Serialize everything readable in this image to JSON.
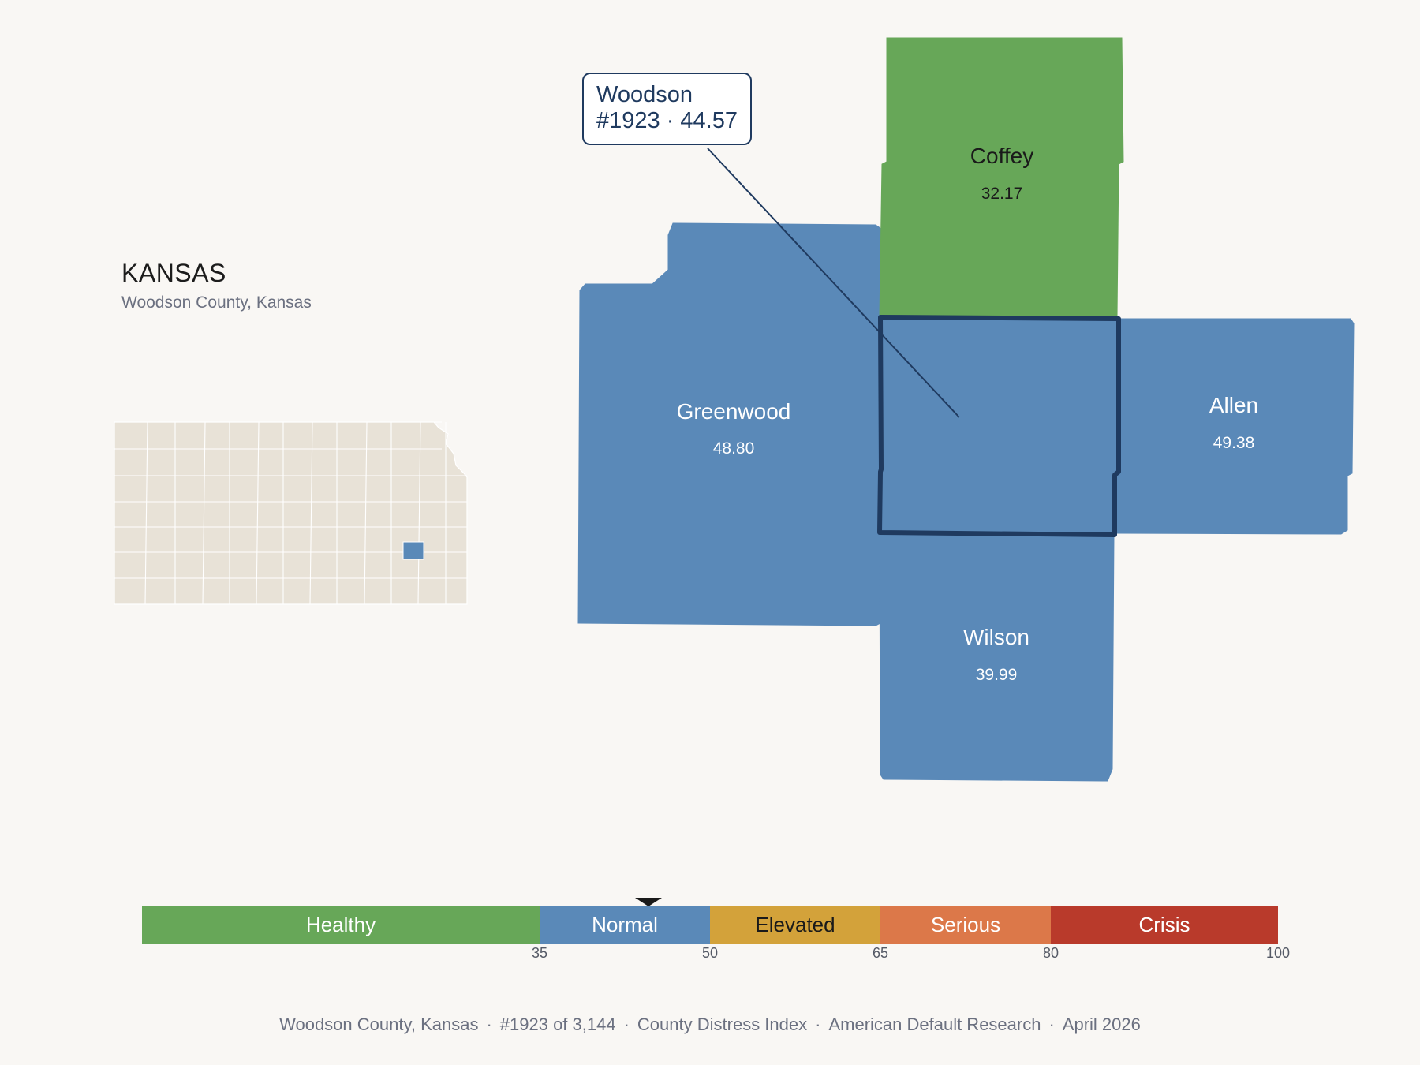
{
  "state": {
    "title": "KANSAS",
    "subtitle": "Woodson County, Kansas"
  },
  "colors": {
    "healthy": "#67a758",
    "normal": "#5a89b8",
    "elevated": "#d3a23a",
    "serious": "#dc7849",
    "crisis": "#b93a2b",
    "outline": "#1f3a5f",
    "inset_fill": "#e8e2d7"
  },
  "focus": {
    "name": "Woodson",
    "rank_value": "#1923 · 44.57",
    "category": "normal"
  },
  "counties": [
    {
      "id": "coffey",
      "name": "Coffey",
      "value": "32.17",
      "category": "healthy"
    },
    {
      "id": "greenwood",
      "name": "Greenwood",
      "value": "48.80",
      "category": "normal"
    },
    {
      "id": "allen",
      "name": "Allen",
      "value": "49.38",
      "category": "normal"
    },
    {
      "id": "wilson",
      "name": "Wilson",
      "value": "39.99",
      "category": "normal"
    }
  ],
  "scale": {
    "segments": [
      {
        "label": "Healthy",
        "from": 0,
        "to": 35,
        "color": "#67a758"
      },
      {
        "label": "Normal",
        "from": 35,
        "to": 50,
        "color": "#5a89b8"
      },
      {
        "label": "Elevated",
        "from": 50,
        "to": 65,
        "color": "#d3a23a"
      },
      {
        "label": "Serious",
        "from": 65,
        "to": 80,
        "color": "#dc7849"
      },
      {
        "label": "Crisis",
        "from": 80,
        "to": 100,
        "color": "#b93a2b"
      }
    ],
    "ticks": [
      "35",
      "50",
      "65",
      "80",
      "100"
    ],
    "marker_value": 44.57
  },
  "footer": {
    "county": "Woodson County, Kansas",
    "rank": "#1923 of 3,144",
    "index": "County Distress Index",
    "org": "American Default Research",
    "date": "April 2026"
  }
}
